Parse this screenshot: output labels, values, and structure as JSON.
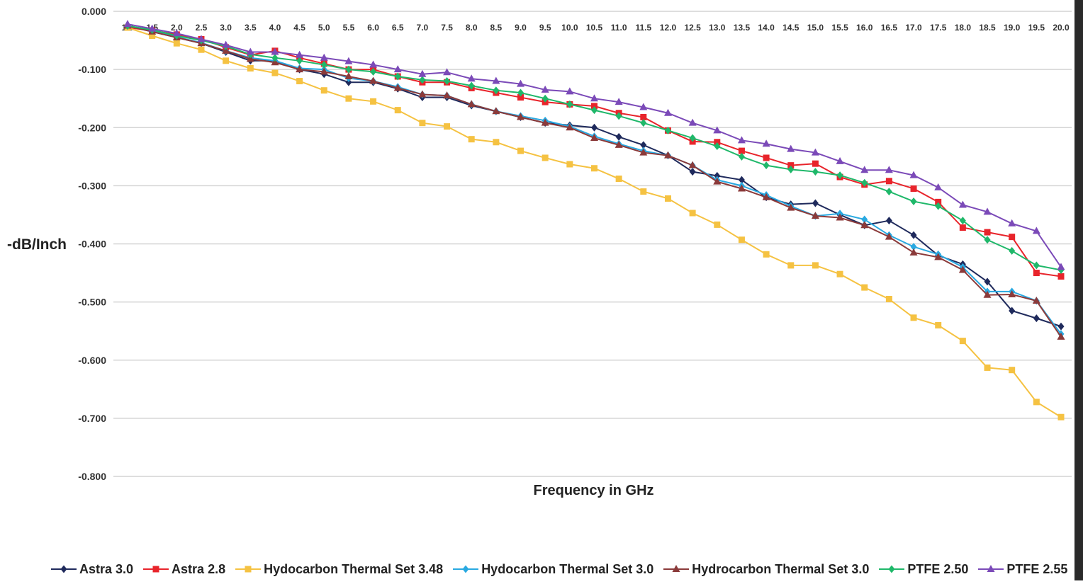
{
  "chart_data": {
    "type": "line",
    "xlabel": "Frequency in GHz",
    "ylabel": "-dB/Inch",
    "xlim": [
      1.0,
      20.0
    ],
    "ylim": [
      -0.8,
      0.0
    ],
    "grid": true,
    "legend_position": "bottom",
    "x": [
      1.0,
      1.5,
      2.0,
      2.5,
      3.0,
      3.5,
      4.0,
      4.5,
      5.0,
      5.5,
      6.0,
      6.5,
      7.0,
      7.5,
      8.0,
      8.5,
      9.0,
      9.5,
      10.0,
      10.5,
      11.0,
      11.5,
      12.0,
      12.5,
      13.0,
      13.5,
      14.0,
      14.5,
      15.0,
      15.5,
      16.0,
      16.5,
      17.0,
      17.5,
      18.0,
      18.5,
      19.0,
      19.5,
      20.0
    ],
    "x_tick_labels": [
      "1.0",
      "1.5",
      "2.0",
      "2.5",
      "3.0",
      "3.5",
      "4.0",
      "4.5",
      "5.0",
      "5.5",
      "6.0",
      "6.5",
      "7.0",
      "7.5",
      "8.0",
      "8.5",
      "9.0",
      "9.5",
      "10.0",
      "10.5",
      "11.0",
      "11.5",
      "12.0",
      "12.5",
      "13.0",
      "13.5",
      "14.0",
      "14.5",
      "15.0",
      "15.5",
      "16.0",
      "16.5",
      "17.0",
      "17.5",
      "18.0",
      "18.5",
      "19.0",
      "19.5",
      "20.0"
    ],
    "y_ticks": [
      0.0,
      -0.1,
      -0.2,
      -0.3,
      -0.4,
      -0.5,
      -0.6,
      -0.7,
      -0.8
    ],
    "y_tick_labels": [
      "0.000",
      "-0.100",
      "-0.200",
      "-0.300",
      "-0.400",
      "-0.500",
      "-0.600",
      "-0.700",
      "-0.800"
    ],
    "series": [
      {
        "name": "Astra 3.0",
        "color": "#1f2a5c",
        "marker": "diamond",
        "values": [
          -0.025,
          -0.035,
          -0.045,
          -0.055,
          -0.07,
          -0.085,
          -0.085,
          -0.1,
          -0.108,
          -0.122,
          -0.122,
          -0.133,
          -0.148,
          -0.148,
          -0.162,
          -0.172,
          -0.182,
          -0.192,
          -0.196,
          -0.2,
          -0.216,
          -0.23,
          -0.248,
          -0.276,
          -0.283,
          -0.29,
          -0.32,
          -0.332,
          -0.33,
          -0.35,
          -0.368,
          -0.36,
          -0.385,
          -0.42,
          -0.435,
          -0.465,
          -0.515,
          -0.528,
          -0.542
        ]
      },
      {
        "name": "Astra 2.8",
        "color": "#e8242b",
        "marker": "square",
        "values": [
          -0.028,
          -0.033,
          -0.04,
          -0.048,
          -0.062,
          -0.075,
          -0.068,
          -0.08,
          -0.09,
          -0.1,
          -0.1,
          -0.112,
          -0.122,
          -0.122,
          -0.132,
          -0.14,
          -0.148,
          -0.156,
          -0.16,
          -0.163,
          -0.175,
          -0.182,
          -0.205,
          -0.224,
          -0.225,
          -0.24,
          -0.252,
          -0.265,
          -0.262,
          -0.285,
          -0.298,
          -0.292,
          -0.305,
          -0.328,
          -0.372,
          -0.38,
          -0.388,
          -0.45,
          -0.456
        ]
      },
      {
        "name": "Hydocarbon Thermal Set 3.48",
        "color": "#f5c242",
        "marker": "square",
        "values": [
          -0.028,
          -0.042,
          -0.055,
          -0.066,
          -0.085,
          -0.098,
          -0.106,
          -0.12,
          -0.136,
          -0.15,
          -0.155,
          -0.17,
          -0.192,
          -0.198,
          -0.22,
          -0.225,
          -0.24,
          -0.252,
          -0.263,
          -0.27,
          -0.288,
          -0.31,
          -0.322,
          -0.347,
          -0.367,
          -0.393,
          -0.418,
          -0.437,
          -0.437,
          -0.452,
          -0.475,
          -0.495,
          -0.527,
          -0.54,
          -0.567,
          -0.613,
          -0.617,
          -0.672,
          -0.698
        ]
      },
      {
        "name": "Hydocarbon Thermal Set 3.0",
        "color": "#29a9e1",
        "marker": "diamond",
        "values": [
          -0.025,
          -0.033,
          -0.044,
          -0.054,
          -0.068,
          -0.08,
          -0.085,
          -0.098,
          -0.1,
          -0.115,
          -0.12,
          -0.13,
          -0.143,
          -0.145,
          -0.16,
          -0.172,
          -0.18,
          -0.188,
          -0.198,
          -0.215,
          -0.228,
          -0.24,
          -0.248,
          -0.265,
          -0.29,
          -0.3,
          -0.316,
          -0.335,
          -0.352,
          -0.348,
          -0.358,
          -0.385,
          -0.405,
          -0.418,
          -0.44,
          -0.482,
          -0.482,
          -0.498,
          -0.555
        ]
      },
      {
        "name": "Hydrocarbon Thermal Set 3.0",
        "color": "#8b3a3a",
        "marker": "triangle",
        "values": [
          -0.025,
          -0.035,
          -0.045,
          -0.055,
          -0.068,
          -0.082,
          -0.088,
          -0.1,
          -0.104,
          -0.112,
          -0.12,
          -0.132,
          -0.143,
          -0.145,
          -0.16,
          -0.172,
          -0.182,
          -0.192,
          -0.2,
          -0.218,
          -0.23,
          -0.243,
          -0.248,
          -0.265,
          -0.293,
          -0.305,
          -0.32,
          -0.338,
          -0.352,
          -0.355,
          -0.368,
          -0.388,
          -0.415,
          -0.423,
          -0.445,
          -0.488,
          -0.487,
          -0.498,
          -0.56
        ]
      },
      {
        "name": "PTFE 2.50",
        "color": "#1fb86a",
        "marker": "diamond",
        "values": [
          -0.025,
          -0.032,
          -0.042,
          -0.05,
          -0.06,
          -0.074,
          -0.08,
          -0.085,
          -0.092,
          -0.1,
          -0.104,
          -0.112,
          -0.118,
          -0.12,
          -0.128,
          -0.136,
          -0.14,
          -0.15,
          -0.16,
          -0.17,
          -0.18,
          -0.192,
          -0.205,
          -0.218,
          -0.232,
          -0.25,
          -0.265,
          -0.272,
          -0.276,
          -0.282,
          -0.295,
          -0.31,
          -0.327,
          -0.335,
          -0.36,
          -0.393,
          -0.412,
          -0.437,
          -0.445
        ]
      },
      {
        "name": "PTFE 2.55",
        "color": "#7b4ab8",
        "marker": "triangle",
        "values": [
          -0.022,
          -0.03,
          -0.038,
          -0.048,
          -0.058,
          -0.07,
          -0.07,
          -0.075,
          -0.08,
          -0.086,
          -0.092,
          -0.1,
          -0.108,
          -0.105,
          -0.116,
          -0.12,
          -0.125,
          -0.135,
          -0.138,
          -0.15,
          -0.156,
          -0.165,
          -0.175,
          -0.192,
          -0.205,
          -0.222,
          -0.228,
          -0.237,
          -0.243,
          -0.258,
          -0.273,
          -0.273,
          -0.282,
          -0.303,
          -0.333,
          -0.345,
          -0.365,
          -0.378,
          -0.44
        ]
      }
    ]
  }
}
